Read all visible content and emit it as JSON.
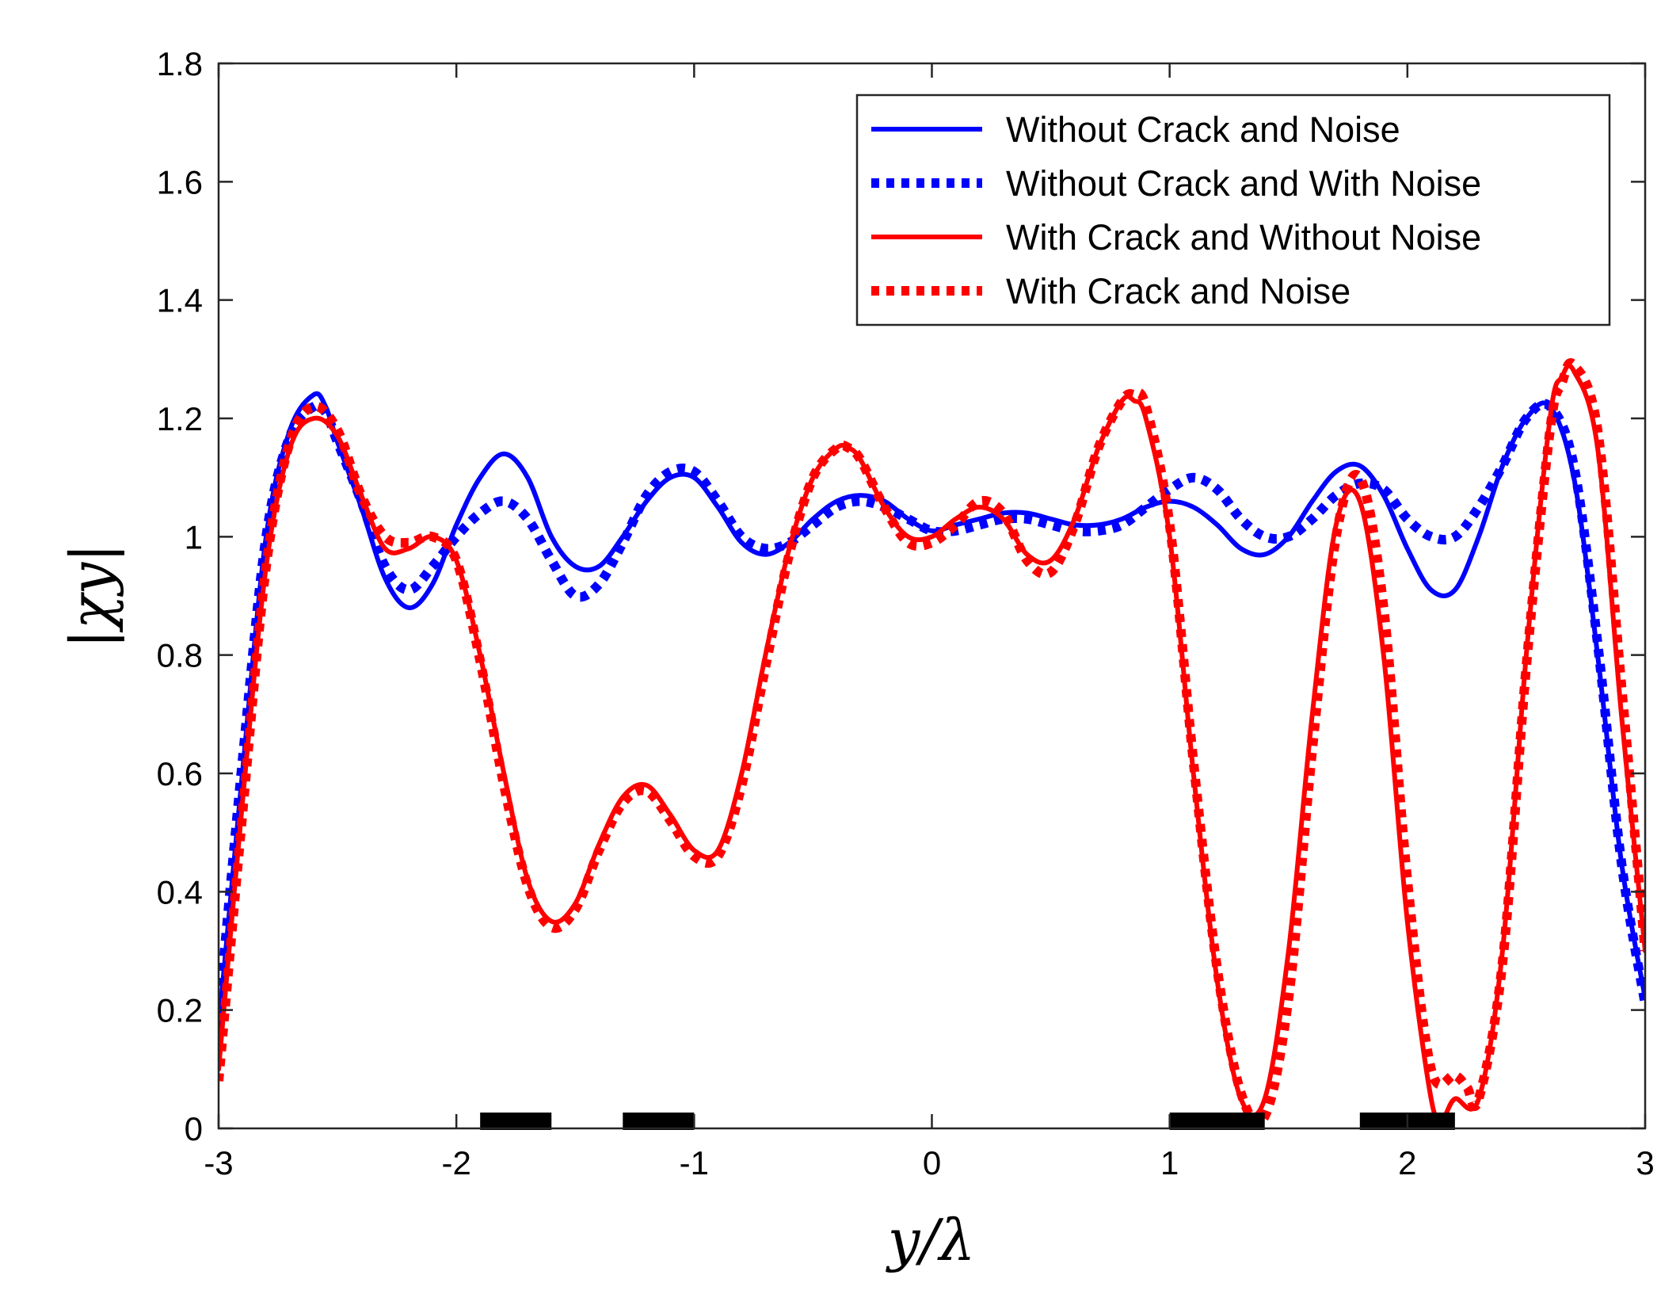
{
  "chart_data": {
    "type": "line",
    "title": "",
    "xlabel": "y/λ",
    "ylabel": "|χy|",
    "xlim": [
      -3,
      3
    ],
    "ylim": [
      0,
      1.8
    ],
    "xticks": [
      -3,
      -2,
      -1,
      0,
      1,
      2,
      3
    ],
    "xtick_labels": [
      "-3",
      "-2",
      "-1",
      "0",
      "1",
      "2",
      "3"
    ],
    "yticks": [
      0,
      0.2,
      0.4,
      0.6,
      0.8,
      1,
      1.2,
      1.4,
      1.6,
      1.8
    ],
    "ytick_labels": [
      "0",
      "0.2",
      "0.4",
      "0.6",
      "0.8",
      "1",
      "1.2",
      "1.4",
      "1.6",
      "1.8"
    ],
    "grid": false,
    "legend_position": "top-right",
    "series": [
      {
        "name": "Without Crack and Noise",
        "color": "#0000ff",
        "style": "solid",
        "x": [
          -3.0,
          -2.9,
          -2.8,
          -2.7,
          -2.6,
          -2.55,
          -2.5,
          -2.4,
          -2.3,
          -2.2,
          -2.1,
          -2.0,
          -1.9,
          -1.8,
          -1.7,
          -1.6,
          -1.5,
          -1.4,
          -1.3,
          -1.2,
          -1.1,
          -1.0,
          -0.9,
          -0.8,
          -0.7,
          -0.6,
          -0.5,
          -0.4,
          -0.3,
          -0.2,
          -0.1,
          0.0,
          0.1,
          0.2,
          0.3,
          0.4,
          0.5,
          0.6,
          0.7,
          0.8,
          0.9,
          1.0,
          1.1,
          1.2,
          1.3,
          1.4,
          1.5,
          1.6,
          1.7,
          1.8,
          1.9,
          2.0,
          2.1,
          2.2,
          2.3,
          2.4,
          2.5,
          2.6,
          2.7,
          2.8,
          2.9,
          3.0
        ],
        "y": [
          0.17,
          0.6,
          1.0,
          1.18,
          1.24,
          1.22,
          1.16,
          1.05,
          0.93,
          0.88,
          0.92,
          1.02,
          1.1,
          1.14,
          1.1,
          1.0,
          0.95,
          0.95,
          1.0,
          1.06,
          1.1,
          1.1,
          1.05,
          0.99,
          0.97,
          0.99,
          1.03,
          1.06,
          1.07,
          1.06,
          1.03,
          1.01,
          1.02,
          1.03,
          1.04,
          1.04,
          1.03,
          1.02,
          1.02,
          1.03,
          1.05,
          1.06,
          1.05,
          1.02,
          0.98,
          0.97,
          1.0,
          1.06,
          1.11,
          1.12,
          1.07,
          0.98,
          0.91,
          0.91,
          1.0,
          1.12,
          1.2,
          1.22,
          1.1,
          0.8,
          0.45,
          0.22
        ]
      },
      {
        "name": "Without Crack and With Noise",
        "color": "#0000ff",
        "style": "dotted",
        "x": [
          -3.0,
          -2.9,
          -2.8,
          -2.7,
          -2.6,
          -2.55,
          -2.5,
          -2.4,
          -2.3,
          -2.2,
          -2.1,
          -2.0,
          -1.9,
          -1.8,
          -1.7,
          -1.6,
          -1.5,
          -1.4,
          -1.3,
          -1.2,
          -1.1,
          -1.0,
          -0.9,
          -0.8,
          -0.7,
          -0.6,
          -0.5,
          -0.4,
          -0.3,
          -0.2,
          -0.1,
          0.0,
          0.1,
          0.2,
          0.3,
          0.4,
          0.5,
          0.6,
          0.7,
          0.8,
          0.9,
          1.0,
          1.1,
          1.2,
          1.3,
          1.4,
          1.5,
          1.6,
          1.7,
          1.8,
          1.9,
          2.0,
          2.1,
          2.2,
          2.3,
          2.4,
          2.5,
          2.6,
          2.7,
          2.8,
          2.9,
          3.0
        ],
        "y": [
          0.19,
          0.62,
          1.0,
          1.17,
          1.22,
          1.21,
          1.16,
          1.06,
          0.95,
          0.91,
          0.95,
          1.0,
          1.04,
          1.06,
          1.03,
          0.96,
          0.9,
          0.92,
          0.99,
          1.07,
          1.11,
          1.11,
          1.06,
          1.0,
          0.98,
          0.99,
          1.02,
          1.05,
          1.06,
          1.05,
          1.03,
          1.01,
          1.01,
          1.02,
          1.03,
          1.03,
          1.02,
          1.01,
          1.01,
          1.02,
          1.05,
          1.08,
          1.1,
          1.08,
          1.03,
          1.0,
          1.0,
          1.03,
          1.07,
          1.09,
          1.08,
          1.03,
          1.0,
          1.0,
          1.05,
          1.12,
          1.2,
          1.22,
          1.12,
          0.82,
          0.45,
          0.21
        ]
      },
      {
        "name": "With Crack and Without Noise",
        "color": "#ff0000",
        "style": "solid",
        "x": [
          -3.0,
          -2.9,
          -2.8,
          -2.7,
          -2.6,
          -2.5,
          -2.4,
          -2.3,
          -2.2,
          -2.1,
          -2.0,
          -1.9,
          -1.8,
          -1.7,
          -1.6,
          -1.5,
          -1.4,
          -1.3,
          -1.2,
          -1.1,
          -1.0,
          -0.9,
          -0.8,
          -0.7,
          -0.6,
          -0.5,
          -0.4,
          -0.35,
          -0.3,
          -0.2,
          -0.1,
          0.0,
          0.1,
          0.2,
          0.3,
          0.4,
          0.5,
          0.6,
          0.7,
          0.8,
          0.85,
          0.9,
          1.0,
          1.1,
          1.2,
          1.3,
          1.4,
          1.5,
          1.6,
          1.7,
          1.8,
          1.9,
          2.0,
          2.1,
          2.15,
          2.2,
          2.3,
          2.4,
          2.5,
          2.6,
          2.65,
          2.7,
          2.8,
          2.9,
          3.0
        ],
        "y": [
          0.1,
          0.55,
          0.95,
          1.15,
          1.2,
          1.17,
          1.07,
          0.98,
          0.98,
          1.0,
          0.96,
          0.8,
          0.6,
          0.42,
          0.35,
          0.38,
          0.48,
          0.56,
          0.58,
          0.53,
          0.47,
          0.47,
          0.6,
          0.8,
          0.98,
          1.1,
          1.15,
          1.15,
          1.13,
          1.05,
          1.0,
          1.0,
          1.03,
          1.05,
          1.03,
          0.97,
          0.96,
          1.03,
          1.15,
          1.23,
          1.23,
          1.2,
          1.0,
          0.6,
          0.25,
          0.05,
          0.05,
          0.3,
          0.7,
          1.02,
          1.06,
          0.8,
          0.35,
          0.05,
          0.02,
          0.05,
          0.05,
          0.3,
          0.8,
          1.2,
          1.27,
          1.28,
          1.15,
          0.7,
          0.3
        ]
      },
      {
        "name": "With Crack and Noise",
        "color": "#ff0000",
        "style": "dotted",
        "x": [
          -3.0,
          -2.9,
          -2.8,
          -2.7,
          -2.6,
          -2.5,
          -2.4,
          -2.3,
          -2.2,
          -2.1,
          -2.0,
          -1.9,
          -1.8,
          -1.7,
          -1.6,
          -1.5,
          -1.4,
          -1.3,
          -1.2,
          -1.1,
          -1.0,
          -0.9,
          -0.8,
          -0.7,
          -0.6,
          -0.5,
          -0.4,
          -0.35,
          -0.3,
          -0.2,
          -0.1,
          0.0,
          0.1,
          0.2,
          0.3,
          0.4,
          0.5,
          0.6,
          0.7,
          0.8,
          0.85,
          0.9,
          1.0,
          1.1,
          1.2,
          1.3,
          1.4,
          1.5,
          1.6,
          1.7,
          1.8,
          1.9,
          2.0,
          2.1,
          2.2,
          2.25,
          2.3,
          2.4,
          2.5,
          2.6,
          2.65,
          2.7,
          2.8,
          2.9,
          3.0
        ],
        "y": [
          0.08,
          0.53,
          0.95,
          1.16,
          1.22,
          1.18,
          1.07,
          1.0,
          0.99,
          1.0,
          0.96,
          0.79,
          0.58,
          0.41,
          0.34,
          0.37,
          0.47,
          0.55,
          0.57,
          0.52,
          0.46,
          0.46,
          0.58,
          0.78,
          0.97,
          1.1,
          1.15,
          1.15,
          1.13,
          1.05,
          0.99,
          0.99,
          1.02,
          1.06,
          1.04,
          0.96,
          0.94,
          1.02,
          1.15,
          1.23,
          1.24,
          1.22,
          1.02,
          0.62,
          0.27,
          0.06,
          0.02,
          0.22,
          0.64,
          1.0,
          1.1,
          0.88,
          0.42,
          0.1,
          0.09,
          0.07,
          0.05,
          0.28,
          0.78,
          1.18,
          1.26,
          1.29,
          1.18,
          0.75,
          0.3
        ]
      }
    ],
    "crack_segments": [
      [
        -1.9,
        -1.6
      ],
      [
        -1.3,
        -1.0
      ],
      [
        1.0,
        1.4
      ],
      [
        1.8,
        2.2
      ]
    ]
  }
}
